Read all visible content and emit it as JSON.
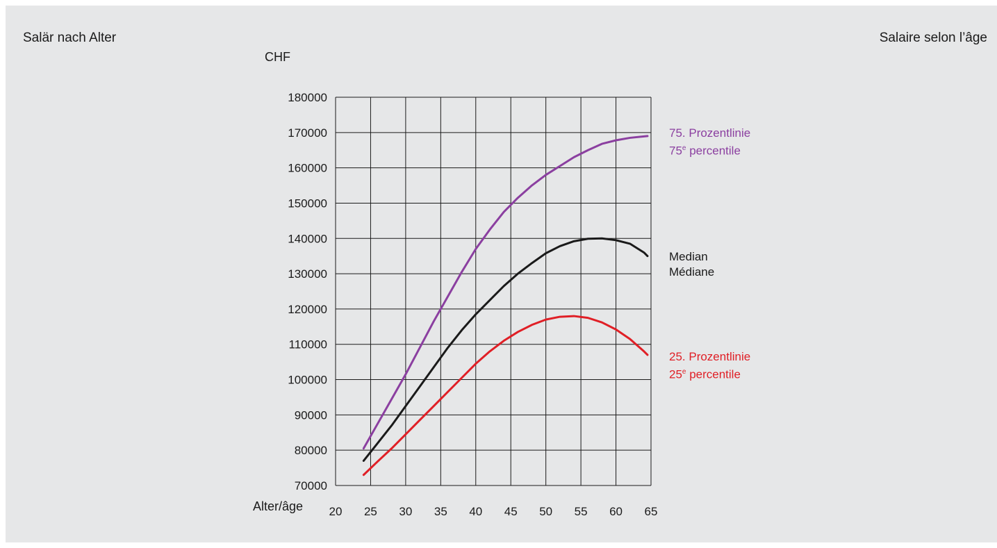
{
  "header": {
    "title_left": "Salär nach Alter",
    "title_right": "Salaire selon l’âge"
  },
  "colors": {
    "background": "#e6e7e8",
    "p75": "#8b3fa0",
    "median": "#1a1a1a",
    "p25": "#e01f26",
    "grid": "#1a1a1a"
  },
  "chart_data": {
    "type": "line",
    "ylabel": "CHF",
    "xlabel": "Alter/âge",
    "xlim": [
      20,
      65
    ],
    "ylim": [
      70000,
      180000
    ],
    "x_ticks": [
      20,
      25,
      30,
      35,
      40,
      45,
      50,
      55,
      60,
      65
    ],
    "y_ticks": [
      70000,
      80000,
      90000,
      100000,
      110000,
      120000,
      130000,
      140000,
      150000,
      160000,
      170000,
      180000
    ],
    "y_tick_labels": [
      "70000",
      "80000",
      "90000",
      "100000",
      "110000",
      "120000",
      "130000",
      "140000",
      "150000",
      "160000",
      "170000",
      "180000"
    ],
    "grid": true,
    "legend": "right, inline labels",
    "x": [
      24,
      26,
      28,
      30,
      32,
      34,
      36,
      38,
      40,
      42,
      44,
      46,
      48,
      50,
      52,
      54,
      56,
      58,
      60,
      62,
      64,
      64.5
    ],
    "series": [
      {
        "name_line1": "75. Prozentlinie",
        "name_line2_num": "75",
        "name_line2_sup": "e",
        "name_line2_rest": " percentile",
        "color_key": "p75",
        "values": [
          80500,
          87500,
          94500,
          101500,
          109000,
          116500,
          123500,
          130500,
          137000,
          142500,
          147500,
          151500,
          155000,
          158000,
          160500,
          163000,
          165000,
          166800,
          167800,
          168500,
          168900,
          169000
        ]
      },
      {
        "name_line1": "Median",
        "name_line2_rest": "Médiane",
        "color_key": "median",
        "values": [
          77000,
          82000,
          87000,
          92500,
          98000,
          103500,
          109000,
          114000,
          118500,
          122500,
          126500,
          130000,
          133000,
          135800,
          137800,
          139200,
          139900,
          140000,
          139500,
          138500,
          136000,
          135000
        ]
      },
      {
        "name_line1": "25. Prozentlinie",
        "name_line2_num": "25",
        "name_line2_sup": "e",
        "name_line2_rest": " percentile",
        "color_key": "p25",
        "values": [
          73000,
          76800,
          80500,
          84500,
          88500,
          92500,
          96500,
          100500,
          104500,
          108000,
          111000,
          113500,
          115500,
          117000,
          117800,
          118000,
          117500,
          116200,
          114200,
          111500,
          108000,
          107000
        ]
      }
    ]
  }
}
